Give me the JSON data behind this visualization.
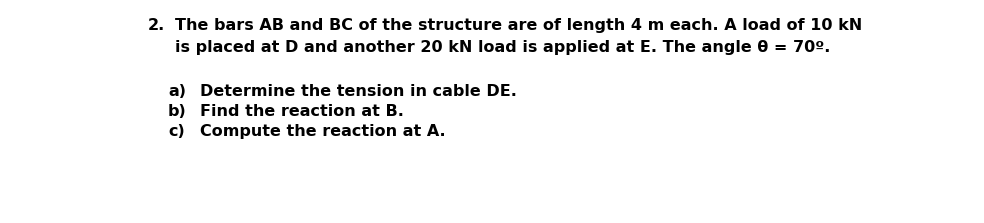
{
  "background_color": "#ffffff",
  "text_color": "#000000",
  "font_family": "DejaVu Sans",
  "font_size": 11.5,
  "font_weight": "bold",
  "number": "2.",
  "line1": "The bars AB and BC of the structure are of length 4 m each. A load of 10 kN",
  "line2": "is placed at D and another 20 kN load is applied at E. The angle θ = 70º.",
  "sub_a_label": "a)",
  "sub_a_text": "Determine the tension in cable DE.",
  "sub_b_label": "b)",
  "sub_b_text": "Find the reaction at B.",
  "sub_c_label": "c)",
  "sub_c_text": "Compute the reaction at A.",
  "fig_width": 9.84,
  "fig_height": 2.23,
  "dpi": 100
}
